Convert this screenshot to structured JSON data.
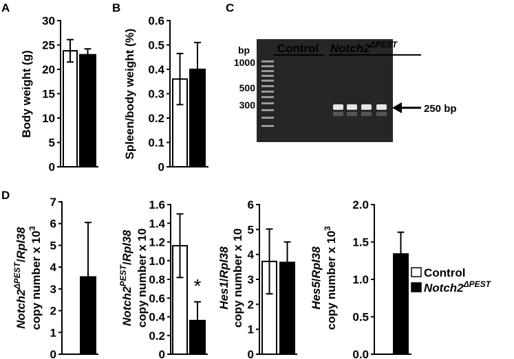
{
  "panel_labels": [
    "A",
    "B",
    "C",
    "D"
  ],
  "chart_data": [
    {
      "type": "bar",
      "ylabel": "Body weight (g)",
      "values": [
        23.8,
        23.0
      ],
      "errors": [
        2.3,
        1.2
      ],
      "colors": [
        "#ffffff",
        "#000000"
      ],
      "ylim": [
        0,
        30
      ],
      "yticks": [
        0,
        5,
        10,
        15,
        20,
        25,
        30
      ]
    },
    {
      "type": "bar",
      "ylabel": "Spleen/body weight (%)",
      "values": [
        0.36,
        0.4
      ],
      "errors": [
        0.105,
        0.11
      ],
      "colors": [
        "#ffffff",
        "#000000"
      ],
      "ylim": [
        0,
        0.6
      ],
      "yticks": [
        0,
        0.1,
        0.2,
        0.3,
        0.4,
        0.5,
        0.6
      ]
    },
    {
      "type": "bar",
      "ylabel": [
        "Notch2",
        "ΔPEST",
        "/",
        "Rpl38"
      ],
      "ylabel2": [
        "copy number x 10",
        "3"
      ],
      "values": [
        null,
        3.55
      ],
      "errors": [
        null,
        2.5
      ],
      "colors": [
        "#ffffff",
        "#000000"
      ],
      "ylim": [
        0,
        7
      ],
      "yticks": [
        0,
        1,
        2,
        3,
        4,
        5,
        6,
        7
      ]
    },
    {
      "type": "bar",
      "ylabel": [
        "Notch2",
        "PEST",
        "/",
        "Rpl38"
      ],
      "ylabel2": [
        "copy number x 10"
      ],
      "values": [
        1.16,
        0.36
      ],
      "errors": [
        0.34,
        0.2
      ],
      "colors": [
        "#ffffff",
        "#000000"
      ],
      "ylim": [
        0,
        1.6
      ],
      "yticks": [
        0,
        0.2,
        0.4,
        0.6,
        0.8,
        {
          "value": 1,
          "label": "1.0"
        },
        1.2,
        1.4,
        1.6
      ],
      "annotation": "*"
    },
    {
      "type": "bar",
      "ylabel": [
        "Hes1",
        "/",
        "Rpl38"
      ],
      "ylabel2": [
        "copy number x 10"
      ],
      "values": [
        3.72,
        3.68
      ],
      "errors": [
        1.3,
        0.82
      ],
      "colors": [
        "#ffffff",
        "#000000"
      ],
      "ylim": [
        0,
        6
      ],
      "yticks": [
        0,
        1,
        2,
        3,
        4,
        5,
        6
      ]
    },
    {
      "type": "bar",
      "ylabel": [
        "Hes5",
        "/",
        "Rpl38"
      ],
      "ylabel2": [
        "copy number x 10",
        "3"
      ],
      "values": [
        null,
        1.34
      ],
      "errors": [
        null,
        0.29
      ],
      "colors": [
        "#ffffff",
        "#000000"
      ],
      "ylim": [
        0,
        2
      ],
      "yticks": [
        {
          "value": 0,
          "label": "0.0"
        },
        {
          "value": 0.5,
          "label": "0.5"
        },
        {
          "value": 1,
          "label": "1.0"
        },
        {
          "value": 1.5,
          "label": "1.5"
        },
        {
          "value": 2,
          "label": "2.0"
        }
      ]
    }
  ],
  "gel": {
    "unit": "bp",
    "markers": [
      "1000",
      "500",
      "300"
    ],
    "groups": [
      "Control",
      [
        "Notch2",
        "ΔPEST"
      ]
    ],
    "band_label": "250 bp"
  },
  "legend": {
    "entries": [
      {
        "name": [
          "Control"
        ],
        "color": "#ffffff"
      },
      {
        "name": [
          "Notch2",
          "ΔPEST"
        ],
        "color": "#000000"
      }
    ]
  }
}
